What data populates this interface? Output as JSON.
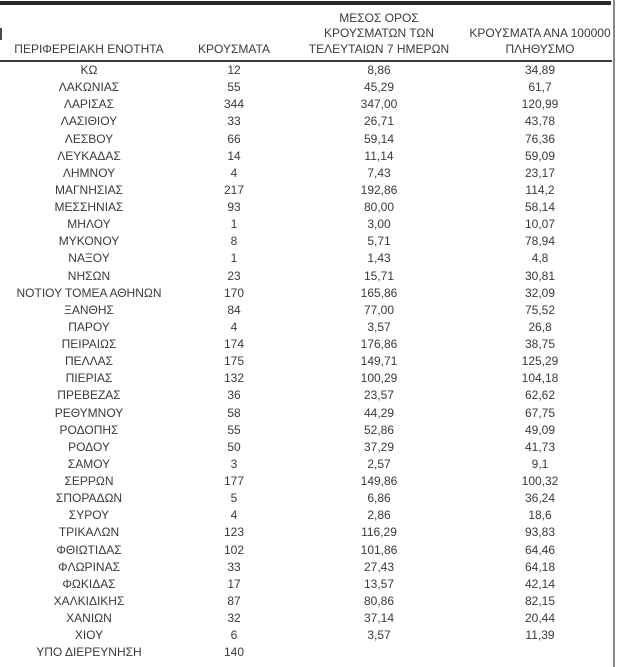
{
  "colors": {
    "text": "#3a3a3a",
    "top_rule": "#2b2b2b",
    "header_underline": "#3b3b3b",
    "right_rule": "#8a8a8a",
    "background": "#ffffff"
  },
  "table": {
    "column_keys": [
      "region",
      "cases",
      "avg7",
      "per100k"
    ],
    "columns": [
      {
        "label": "ΠΕΡΙΦΕΡΕΙΑΚΗ ΕΝΟΤΗΤΑ"
      },
      {
        "label": "ΚΡΟΥΣΜΑΤΑ"
      },
      {
        "label": "ΜΕΣΟΣ ΟΡΟΣ\nΚΡΟΥΣΜΑΤΩΝ ΤΩΝ\nΤΕΛΕΥΤΑΙΩΝ 7 ΗΜΕΡΩΝ"
      },
      {
        "label": "ΚΡΟΥΣΜΑΤΑ ΑΝΑ 100000\nΠΛΗΘΥΣΜΟ"
      }
    ],
    "rows": [
      [
        "ΚΩ",
        "12",
        "8,86",
        "34,89"
      ],
      [
        "ΛΑΚΩΝΙΑΣ",
        "55",
        "45,29",
        "61,7"
      ],
      [
        "ΛΑΡΙΣΑΣ",
        "344",
        "347,00",
        "120,99"
      ],
      [
        "ΛΑΣΙΘΙΟΥ",
        "33",
        "26,71",
        "43,78"
      ],
      [
        "ΛΕΣΒΟΥ",
        "66",
        "59,14",
        "76,36"
      ],
      [
        "ΛΕΥΚΑΔΑΣ",
        "14",
        "11,14",
        "59,09"
      ],
      [
        "ΛΗΜΝΟΥ",
        "4",
        "7,43",
        "23,17"
      ],
      [
        "ΜΑΓΝΗΣΙΑΣ",
        "217",
        "192,86",
        "114,2"
      ],
      [
        "ΜΕΣΣΗΝΙΑΣ",
        "93",
        "80,00",
        "58,14"
      ],
      [
        "ΜΗΛΟΥ",
        "1",
        "3,00",
        "10,07"
      ],
      [
        "ΜΥΚΟΝΟΥ",
        "8",
        "5,71",
        "78,94"
      ],
      [
        "ΝΑΞΟΥ",
        "1",
        "1,43",
        "4,8"
      ],
      [
        "ΝΗΣΩΝ",
        "23",
        "15,71",
        "30,81"
      ],
      [
        "ΝΟΤΙΟΥ ΤΟΜΕΑ ΑΘΗΝΩΝ",
        "170",
        "165,86",
        "32,09"
      ],
      [
        "ΞΑΝΘΗΣ",
        "84",
        "77,00",
        "75,52"
      ],
      [
        "ΠΑΡΟΥ",
        "4",
        "3,57",
        "26,8"
      ],
      [
        "ΠΕΙΡΑΙΩΣ",
        "174",
        "176,86",
        "38,75"
      ],
      [
        "ΠΕΛΛΑΣ",
        "175",
        "149,71",
        "125,29"
      ],
      [
        "ΠΙΕΡΙΑΣ",
        "132",
        "100,29",
        "104,18"
      ],
      [
        "ΠΡΕΒΕΖΑΣ",
        "36",
        "23,57",
        "62,62"
      ],
      [
        "ΡΕΘΥΜΝΟΥ",
        "58",
        "44,29",
        "67,75"
      ],
      [
        "ΡΟΔΟΠΗΣ",
        "55",
        "52,86",
        "49,09"
      ],
      [
        "ΡΟΔΟΥ",
        "50",
        "37,29",
        "41,73"
      ],
      [
        "ΣΑΜΟΥ",
        "3",
        "2,57",
        "9,1"
      ],
      [
        "ΣΕΡΡΩΝ",
        "177",
        "149,86",
        "100,32"
      ],
      [
        "ΣΠΟΡΑΔΩΝ",
        "5",
        "6,86",
        "36,24"
      ],
      [
        "ΣΥΡΟΥ",
        "4",
        "2,86",
        "18,6"
      ],
      [
        "ΤΡΙΚΑΛΩΝ",
        "123",
        "116,29",
        "93,83"
      ],
      [
        "ΦΘΙΩΤΙΔΑΣ",
        "102",
        "101,86",
        "64,46"
      ],
      [
        "ΦΛΩΡΙΝΑΣ",
        "33",
        "27,43",
        "64,18"
      ],
      [
        "ΦΩΚΙΔΑΣ",
        "17",
        "13,57",
        "42,14"
      ],
      [
        "ΧΑΛΚΙΔΙΚΗΣ",
        "87",
        "80,86",
        "82,15"
      ],
      [
        "ΧΑΝΙΩΝ",
        "32",
        "37,14",
        "20,44"
      ],
      [
        "ΧΙΟΥ",
        "6",
        "3,57",
        "11,39"
      ],
      [
        "ΥΠΟ ΔΙΕΡΕΥΝΗΣΗ",
        "140",
        "",
        ""
      ]
    ]
  }
}
